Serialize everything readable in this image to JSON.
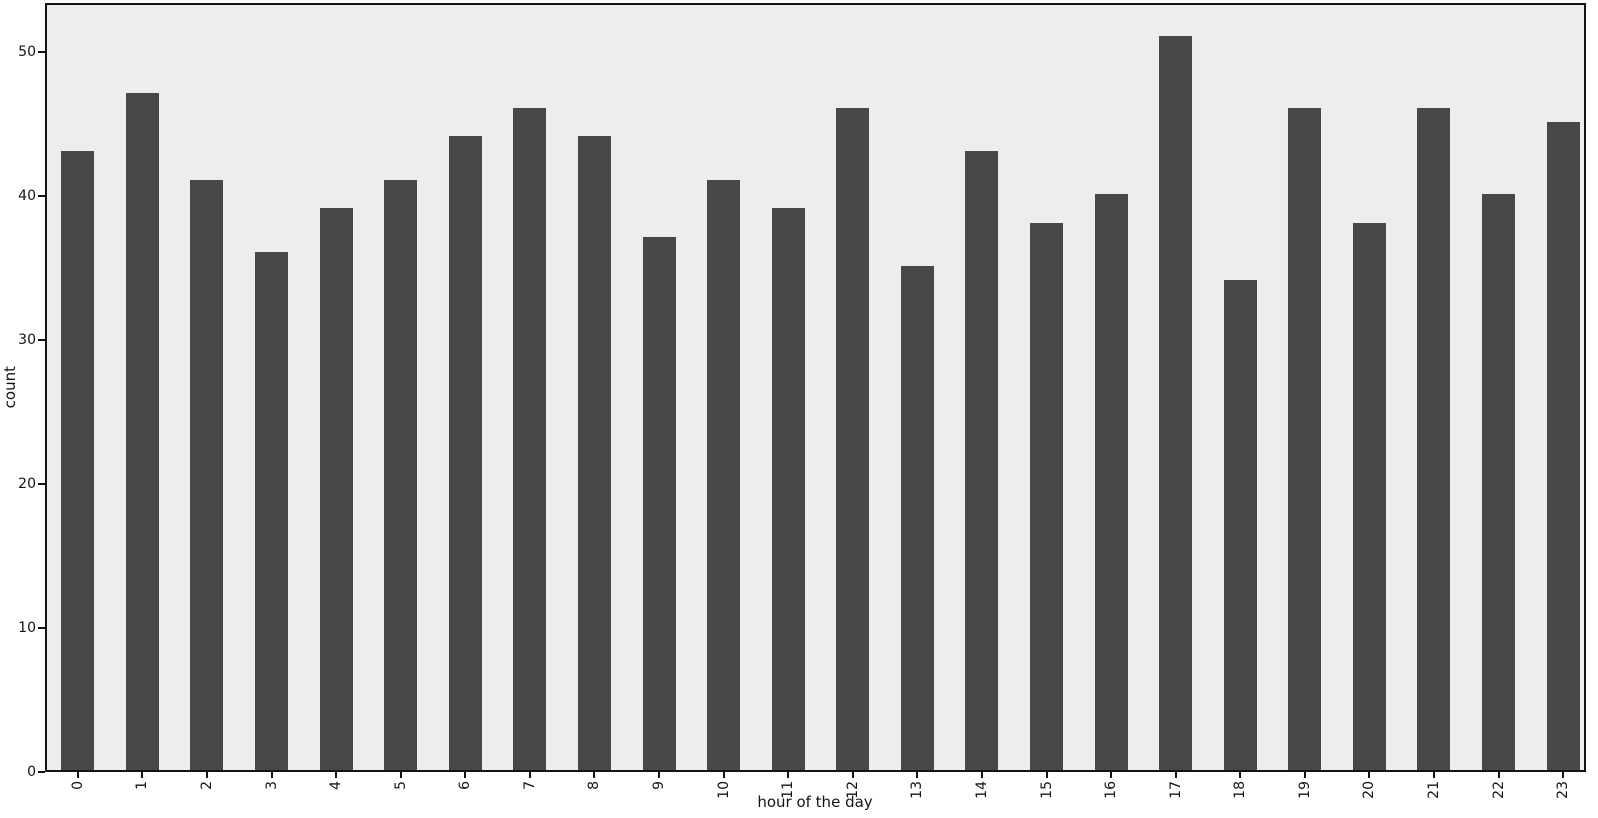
{
  "figure": {
    "background_color": "#ffffff",
    "plot_background_color": "#ededed",
    "bar_color": "#484848",
    "spine_color": "#141414",
    "text_color": "#141414"
  },
  "chart_data": {
    "type": "bar",
    "title": "",
    "xlabel": "hour of the day",
    "ylabel": "count",
    "categories": [
      "0",
      "1",
      "2",
      "3",
      "4",
      "5",
      "6",
      "7",
      "8",
      "9",
      "10",
      "11",
      "12",
      "13",
      "14",
      "15",
      "16",
      "17",
      "18",
      "19",
      "20",
      "21",
      "22",
      "23"
    ],
    "values": [
      43,
      47,
      41,
      36,
      39,
      41,
      44,
      46,
      44,
      37,
      41,
      39,
      46,
      35,
      43,
      38,
      40,
      51,
      34,
      46,
      38,
      46,
      40,
      45
    ],
    "series": [
      {
        "name": "count",
        "values": [
          43,
          47,
          41,
          36,
          39,
          41,
          44,
          46,
          44,
          37,
          41,
          39,
          46,
          35,
          43,
          38,
          40,
          51,
          34,
          46,
          38,
          46,
          40,
          45
        ]
      }
    ],
    "yticks": [
      0,
      10,
      20,
      30,
      40,
      50
    ],
    "ylim": [
      0,
      53.55
    ],
    "xlim_categories": [
      "0",
      "23"
    ],
    "x_tick_rotation_deg": 90,
    "grid": false,
    "legend": null,
    "bar_relative_width": 0.5
  }
}
